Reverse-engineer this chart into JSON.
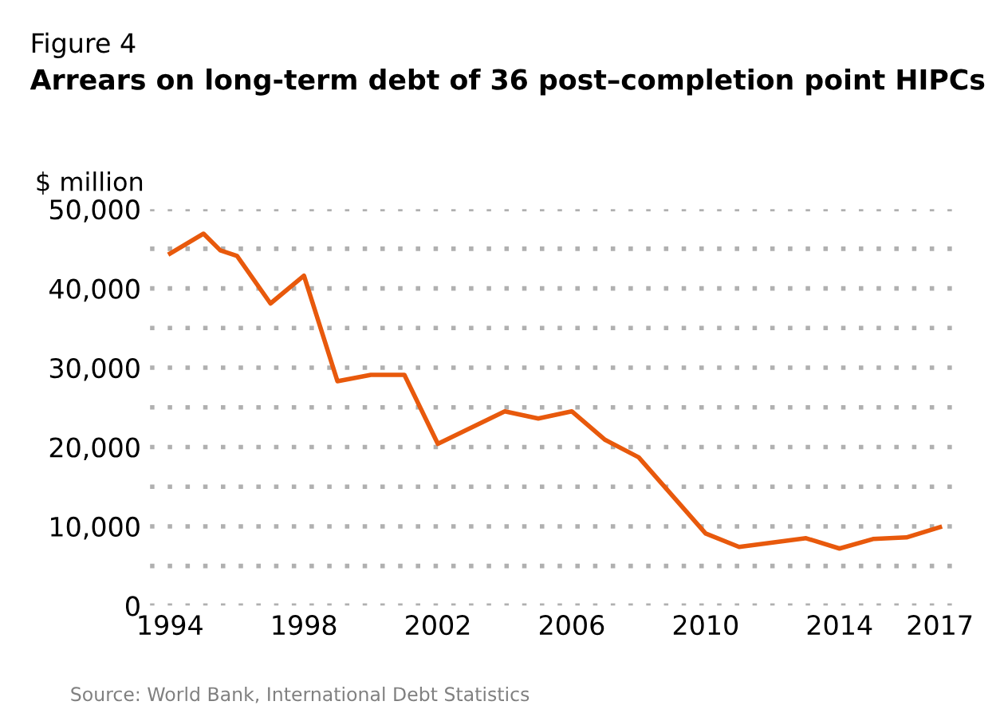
{
  "chart_data": {
    "type": "line",
    "title": "Figure 4",
    "subtitle": "Arrears on long-term debt of 36 post–completion point HIPCs",
    "ylabel": "$ million",
    "annotations": [
      "Source: World Bank, International Debt Statistics"
    ],
    "series": [
      {
        "color": "#e8590c",
        "x": [
          1994,
          1995,
          1995.5,
          1996,
          1997,
          1998,
          1999,
          2000,
          2001,
          2002,
          2004,
          2005,
          2006,
          2007,
          2008,
          2010,
          2011,
          2013,
          2014,
          2015,
          2016,
          2017
        ],
        "values": [
          44400,
          46900,
          44800,
          44100,
          38100,
          41600,
          28300,
          29100,
          29100,
          20400,
          24500,
          23600,
          24500,
          20900,
          18700,
          9100,
          7400,
          8500,
          7200,
          8400,
          8600,
          9900
        ]
      }
    ],
    "xlim": [
      1993.4,
      2017.6
    ],
    "xticks": [
      1994,
      1998,
      2002,
      2006,
      2010,
      2014,
      2017
    ],
    "ylim": [
      0,
      50000
    ],
    "yticks": [
      {
        "value": 0,
        "label": "0"
      },
      {
        "value": 5000,
        "label": null
      },
      {
        "value": 10000,
        "label": "10,000"
      },
      {
        "value": 15000,
        "label": null
      },
      {
        "value": 20000,
        "label": "20,000"
      },
      {
        "value": 25000,
        "label": null
      },
      {
        "value": 30000,
        "label": "30,000"
      },
      {
        "value": 35000,
        "label": null
      },
      {
        "value": 40000,
        "label": "40,000"
      },
      {
        "value": 45000,
        "label": null
      },
      {
        "value": 50000,
        "label": "50,000"
      }
    ],
    "grid": "y",
    "marker": "none",
    "line_style": "solid"
  }
}
